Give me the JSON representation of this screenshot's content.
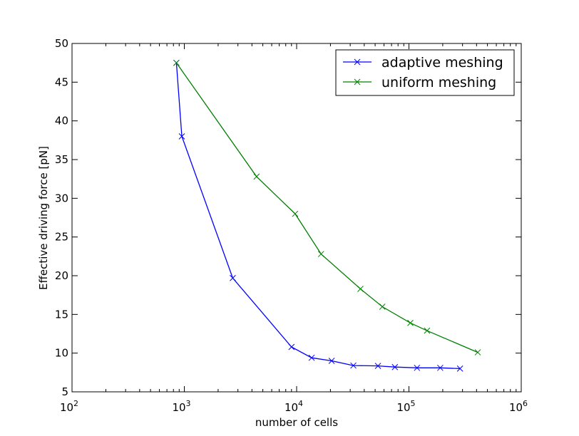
{
  "chart_data": {
    "type": "line",
    "xscale": "log",
    "xlabel": "number of cells",
    "ylabel": "Effective driving force [pN]",
    "xlim": [
      100,
      1000000
    ],
    "ylim": [
      5,
      50
    ],
    "grid": false,
    "legend_position": "top-right",
    "x_ticks": [
      {
        "base": "10",
        "exp": "2",
        "value": 100
      },
      {
        "base": "10",
        "exp": "3",
        "value": 1000
      },
      {
        "base": "10",
        "exp": "4",
        "value": 10000
      },
      {
        "base": "10",
        "exp": "5",
        "value": 100000
      },
      {
        "base": "10",
        "exp": "6",
        "value": 1000000
      }
    ],
    "y_ticks": [
      "5",
      "10",
      "15",
      "20",
      "25",
      "30",
      "35",
      "40",
      "45",
      "50"
    ],
    "series": [
      {
        "name": "adaptive meshing",
        "color": "#0000ff",
        "marker": "x",
        "x": [
          850,
          950,
          2700,
          9000,
          13600,
          20500,
          32000,
          53000,
          75000,
          118000,
          190000,
          285000
        ],
        "y": [
          47.5,
          38.0,
          19.7,
          10.8,
          9.4,
          9.0,
          8.4,
          8.35,
          8.2,
          8.1,
          8.1,
          8.0
        ]
      },
      {
        "name": "uniform meshing",
        "color": "#008000",
        "marker": "x",
        "x": [
          850,
          4400,
          9700,
          16500,
          37000,
          58000,
          103000,
          145000,
          410000
        ],
        "y": [
          47.5,
          32.8,
          28.0,
          22.8,
          18.3,
          16.0,
          13.9,
          12.9,
          10.1
        ]
      }
    ]
  }
}
